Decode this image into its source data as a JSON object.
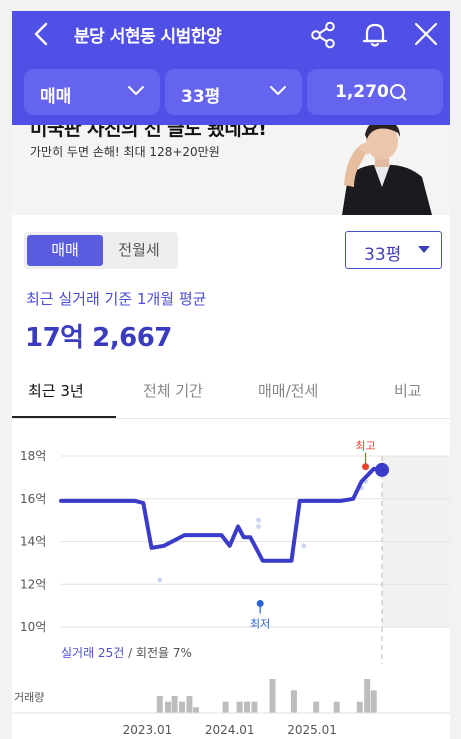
{
  "header": {
    "title": "분당 서현동 시범한양",
    "icons": {
      "back": "chevron-left-icon",
      "share": "share-icon",
      "bell": "bell-icon",
      "close": "close-icon"
    }
  },
  "filters": {
    "trade_type": "매매",
    "area": "33평",
    "count": "1,270"
  },
  "banner": {
    "headline": "미국판 사진의 선 글도 됐네요!",
    "subtitle": "가만히 두면 손해! 최대 128+20만원"
  },
  "price_toggle": {
    "options": [
      "매매",
      "전월세"
    ],
    "selected": 0
  },
  "area_select": {
    "value": "33평"
  },
  "summary": {
    "label": "최근 실거래 기준 1개월 평균",
    "price": "17억 2,667"
  },
  "tabs": [
    "최근 3년",
    "전체 기간",
    "매매/전세",
    "비교"
  ],
  "colors": {
    "primary": "#5150e6",
    "line": "#3b3bc9",
    "high": "#e8462c",
    "low": "#2a64d6"
  },
  "chart_data": {
    "type": "line",
    "y_tick_labels": [
      "10억",
      "12억",
      "14억",
      "16억",
      "18억"
    ],
    "ylim": [
      10,
      18
    ],
    "x_tick_labels": [
      "2023.01",
      "2024.01",
      "2025.01"
    ],
    "series": [
      {
        "x": [
          2022.0,
          2022.9,
          2023.0,
          2023.1,
          2023.25,
          2023.5,
          2023.7,
          2023.85,
          2023.95,
          2024.05,
          2024.15,
          2024.22,
          2024.3,
          2024.45,
          2024.55,
          2024.65,
          2024.8,
          2024.9,
          2024.97,
          2025.1,
          2025.4,
          2025.55,
          2025.65,
          2025.8,
          2025.9
        ],
        "values": [
          15.9,
          15.9,
          15.8,
          13.7,
          13.8,
          14.3,
          14.3,
          14.3,
          14.3,
          13.8,
          14.7,
          14.2,
          14.2,
          13.1,
          13.1,
          13.1,
          13.1,
          15.9,
          15.9,
          15.9,
          15.9,
          16.0,
          16.8,
          17.4,
          17.35
        ]
      }
    ],
    "scatter_points": [
      {
        "x": 2023.2,
        "value": 12.2
      },
      {
        "x": 2024.4,
        "value": 15.0
      },
      {
        "x": 2024.4,
        "value": 14.7
      },
      {
        "x": 2024.95,
        "value": 13.8
      },
      {
        "x": 2025.65,
        "value": 16.5
      },
      {
        "x": 2025.7,
        "value": 16.8
      }
    ],
    "annotations": {
      "high": {
        "label": "최고",
        "x": 2025.7,
        "value": 17.5
      },
      "low": {
        "label": "최저",
        "x": 2024.42,
        "value": 11.1
      }
    },
    "legend_text": {
      "count": "실거래 25건",
      "rest": " / 회전율 7%"
    },
    "volume_label": "거래량",
    "volume": [
      {
        "x": 2023.2,
        "v": 3
      },
      {
        "x": 2023.3,
        "v": 2
      },
      {
        "x": 2023.38,
        "v": 3
      },
      {
        "x": 2023.47,
        "v": 2
      },
      {
        "x": 2023.56,
        "v": 3
      },
      {
        "x": 2023.64,
        "v": 1
      },
      {
        "x": 2024.0,
        "v": 2
      },
      {
        "x": 2024.17,
        "v": 2
      },
      {
        "x": 2024.26,
        "v": 2
      },
      {
        "x": 2024.35,
        "v": 2
      },
      {
        "x": 2024.57,
        "v": 6
      },
      {
        "x": 2024.83,
        "v": 4
      },
      {
        "x": 2025.1,
        "v": 2
      },
      {
        "x": 2025.35,
        "v": 2
      },
      {
        "x": 2025.63,
        "v": 2
      },
      {
        "x": 2025.72,
        "v": 6
      },
      {
        "x": 2025.8,
        "v": 4
      }
    ]
  }
}
